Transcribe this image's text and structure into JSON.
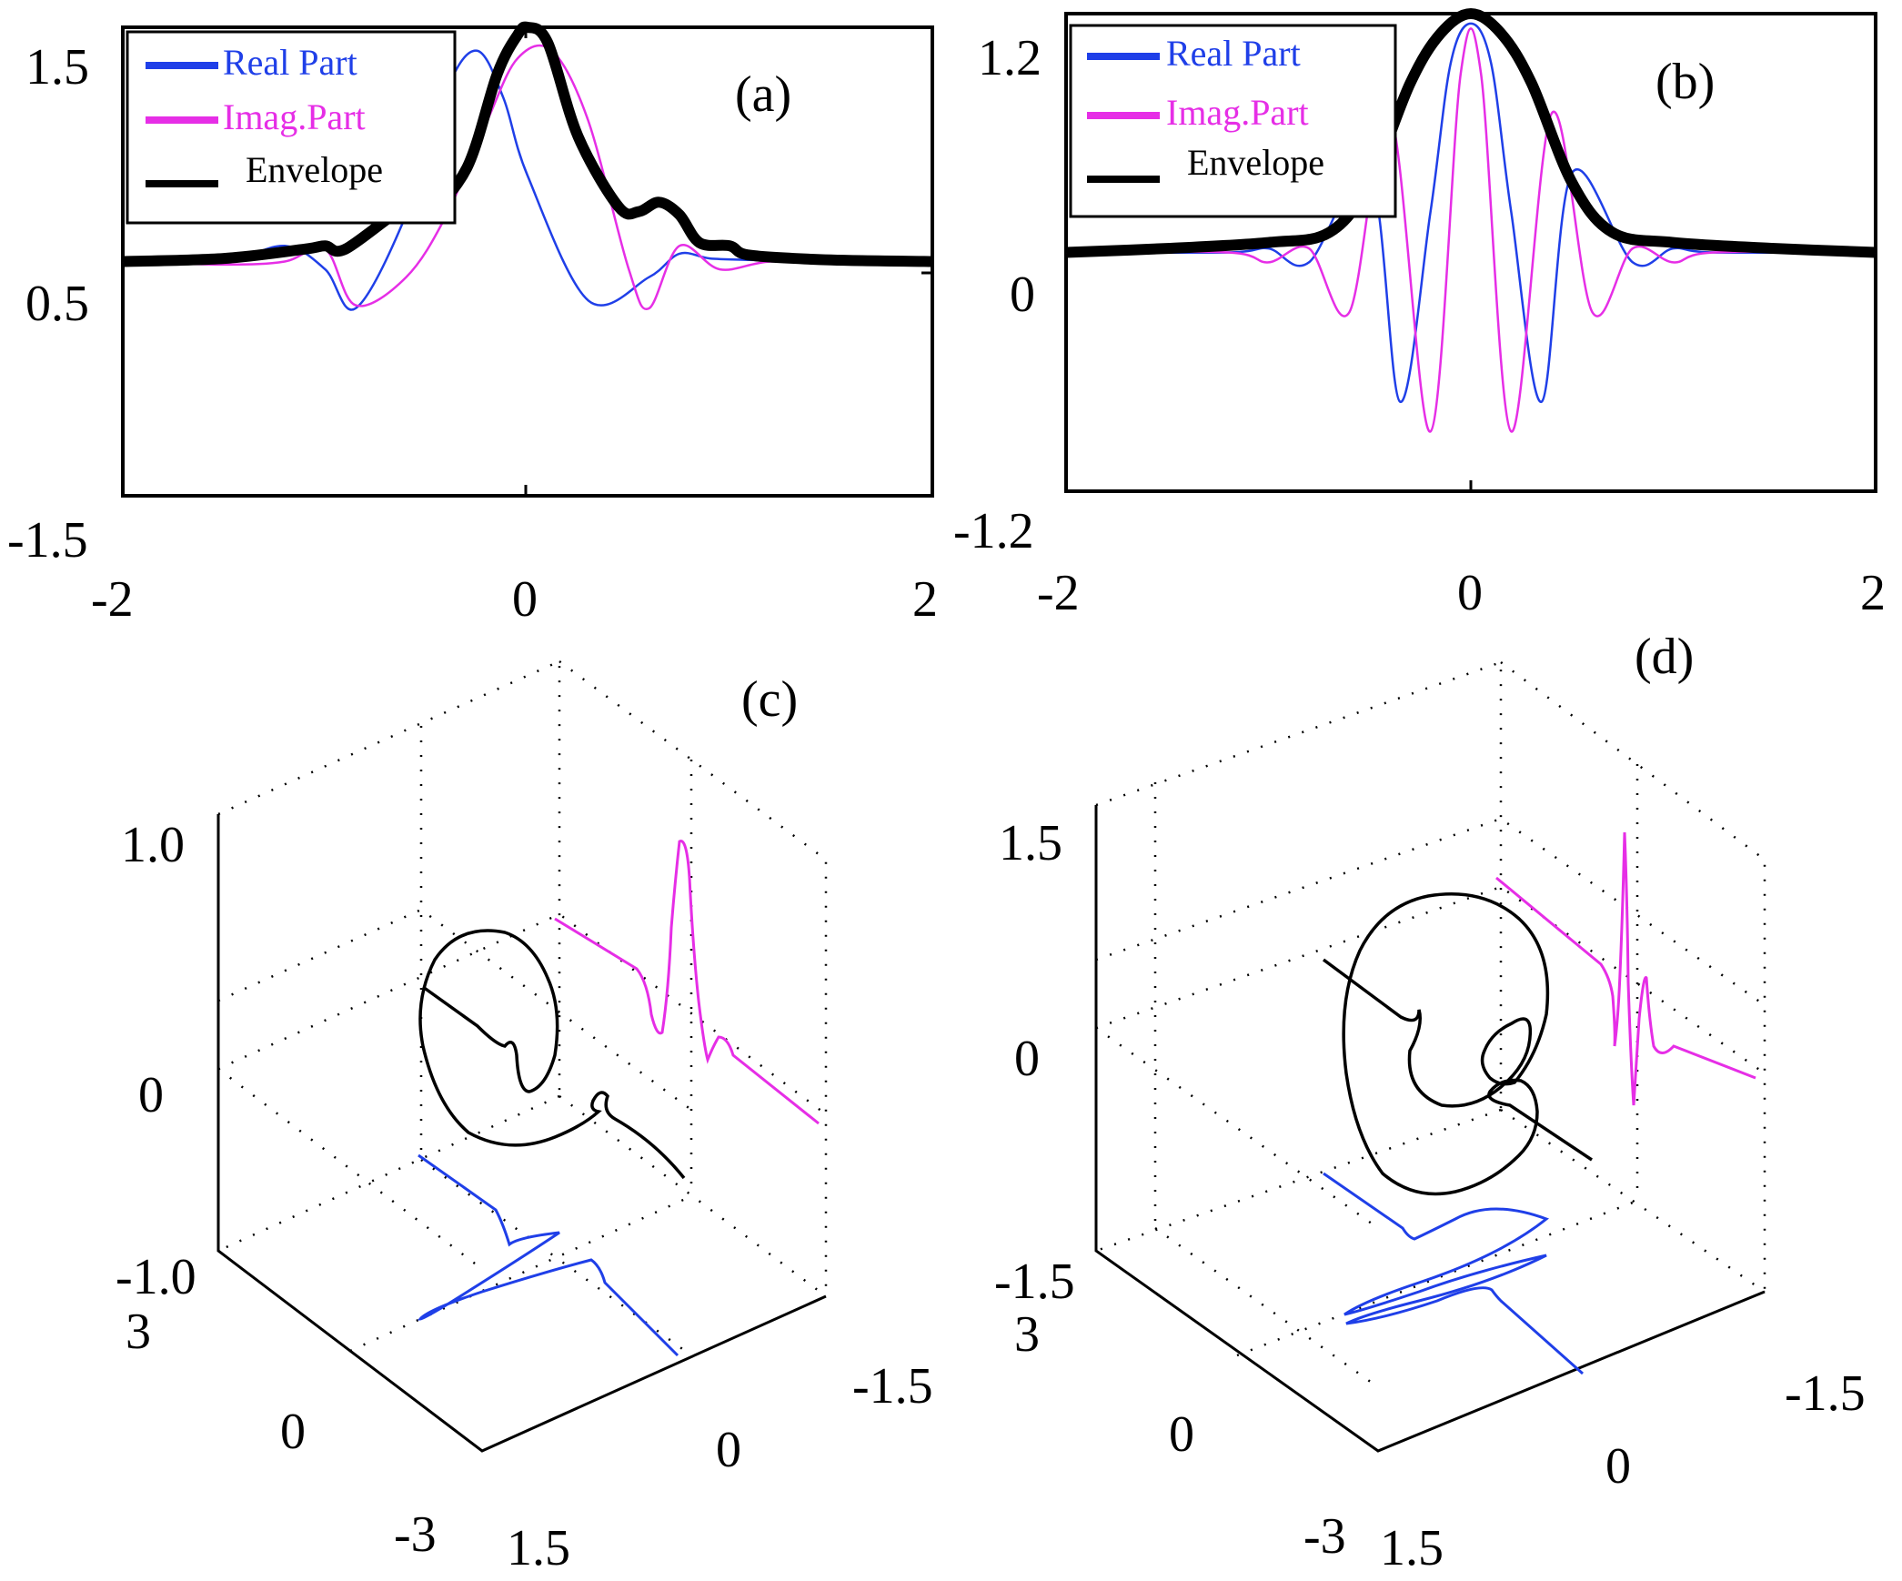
{
  "colors": {
    "real": "#1f3fe8",
    "imag": "#e62ee6",
    "envelope": "#000000"
  },
  "chart_data": [
    {
      "id": "a",
      "type": "line",
      "panel_label": "(a)",
      "xlim": [
        -2,
        2
      ],
      "ylim": [
        -1.5,
        1.5
      ],
      "x_ticks": [
        "-2",
        "0",
        "2"
      ],
      "y_ticks": [
        "1.5",
        "0.5",
        "-1.5"
      ],
      "legend": [
        "Real Part",
        "Imag.Part",
        "Envelope"
      ],
      "series": [
        {
          "name": "Real Part",
          "color": "#1f3fe8",
          "x": [
            -2.0,
            -1.5,
            -1.2,
            -1.0,
            -0.85,
            -0.6,
            -0.4,
            -0.25,
            -0.12,
            0.0,
            0.3,
            0.6,
            0.75,
            0.9,
            1.1,
            1.4,
            1.7,
            2.0
          ],
          "y": [
            0.0,
            0.0,
            0.1,
            -0.05,
            -0.3,
            0.3,
            1.1,
            1.35,
            1.05,
            0.55,
            -0.25,
            -0.1,
            0.05,
            0.02,
            0.01,
            0.0,
            0.0,
            0.0
          ]
        },
        {
          "name": "Imag.Part",
          "color": "#e62ee6",
          "x": [
            -2.0,
            -1.5,
            -1.2,
            -1.0,
            -0.85,
            -0.6,
            -0.4,
            -0.2,
            -0.05,
            0.12,
            0.3,
            0.5,
            0.6,
            0.75,
            0.95,
            1.2,
            1.6,
            2.0
          ],
          "y": [
            0.0,
            -0.02,
            0.0,
            0.08,
            -0.28,
            -0.1,
            0.3,
            0.9,
            1.3,
            1.35,
            0.9,
            -0.05,
            -0.3,
            0.1,
            -0.05,
            0.0,
            0.0,
            0.0
          ]
        },
        {
          "name": "Envelope",
          "color": "#000000",
          "x": [
            -2.0,
            -1.5,
            -1.1,
            -1.0,
            -0.9,
            -0.6,
            -0.5,
            -0.3,
            -0.15,
            -0.05,
            0.0,
            0.1,
            0.25,
            0.45,
            0.55,
            0.65,
            0.75,
            0.85,
            1.0,
            1.1,
            1.5,
            2.0
          ],
          "y": [
            0.0,
            0.02,
            0.08,
            0.1,
            0.08,
            0.35,
            0.3,
            0.6,
            1.2,
            1.45,
            1.5,
            1.4,
            0.8,
            0.35,
            0.32,
            0.38,
            0.3,
            0.12,
            0.1,
            0.04,
            0.01,
            0.0
          ]
        }
      ]
    },
    {
      "id": "b",
      "type": "line",
      "panel_label": "(b)",
      "xlim": [
        -2,
        2
      ],
      "ylim": [
        -1.2,
        1.2
      ],
      "x_ticks": [
        "-2",
        "0",
        "2"
      ],
      "y_ticks": [
        "1.2",
        "0",
        "-1.2"
      ],
      "legend": [
        "Real Part",
        "Imag.Part",
        "Envelope"
      ],
      "series": [
        {
          "name": "Real Part",
          "color": "#1f3fe8",
          "x": [
            -2.0,
            -1.2,
            -1.0,
            -0.8,
            -0.5,
            -0.35,
            -0.2,
            -0.1,
            0.0,
            0.1,
            0.2,
            0.35,
            0.5,
            0.8,
            1.0,
            1.2,
            2.0
          ],
          "y": [
            0.0,
            0.0,
            0.02,
            -0.05,
            0.4,
            -0.75,
            0.2,
            0.95,
            1.15,
            0.95,
            0.2,
            -0.75,
            0.4,
            -0.05,
            0.02,
            0.0,
            0.0
          ]
        },
        {
          "name": "Imag.Part",
          "color": "#e62ee6",
          "x": [
            -2.0,
            -1.2,
            -1.0,
            -0.8,
            -0.6,
            -0.4,
            -0.2,
            -0.05,
            0.05,
            0.2,
            0.4,
            0.6,
            0.8,
            1.0,
            1.2,
            2.0
          ],
          "y": [
            0.0,
            0.0,
            -0.05,
            0.02,
            -0.3,
            0.7,
            -0.9,
            0.9,
            0.9,
            -0.9,
            0.7,
            -0.3,
            0.02,
            -0.05,
            0.0,
            0.0
          ]
        },
        {
          "name": "Envelope",
          "color": "#000000",
          "x": [
            -2.0,
            -1.5,
            -1.0,
            -0.7,
            -0.5,
            -0.3,
            -0.15,
            0.0,
            0.15,
            0.3,
            0.5,
            0.7,
            1.0,
            1.5,
            2.0
          ],
          "y": [
            0.0,
            0.02,
            0.05,
            0.1,
            0.35,
            0.85,
            1.1,
            1.2,
            1.1,
            0.85,
            0.35,
            0.1,
            0.05,
            0.02,
            0.0
          ]
        }
      ]
    },
    {
      "id": "c",
      "type": "line3d",
      "panel_label": "(c)",
      "z_ticks": [
        "1.0",
        "0",
        "-1.0"
      ],
      "x_ticks": [
        "3",
        "0",
        "-3"
      ],
      "y_ticks": [
        "1.5",
        "0",
        "-1.5"
      ],
      "series": [
        {
          "name": "Envelope",
          "color": "#000000"
        },
        {
          "name": "Imag.Part",
          "color": "#e62ee6"
        },
        {
          "name": "Real Part",
          "color": "#1f3fe8"
        }
      ]
    },
    {
      "id": "d",
      "type": "line3d",
      "panel_label": "(d)",
      "z_ticks": [
        "1.5",
        "0",
        "-1.5"
      ],
      "x_ticks": [
        "3",
        "0",
        "-3"
      ],
      "y_ticks": [
        "1.5",
        "0",
        "-1.5"
      ],
      "series": [
        {
          "name": "Envelope",
          "color": "#000000"
        },
        {
          "name": "Imag.Part",
          "color": "#e62ee6"
        },
        {
          "name": "Real Part",
          "color": "#1f3fe8"
        }
      ]
    }
  ]
}
